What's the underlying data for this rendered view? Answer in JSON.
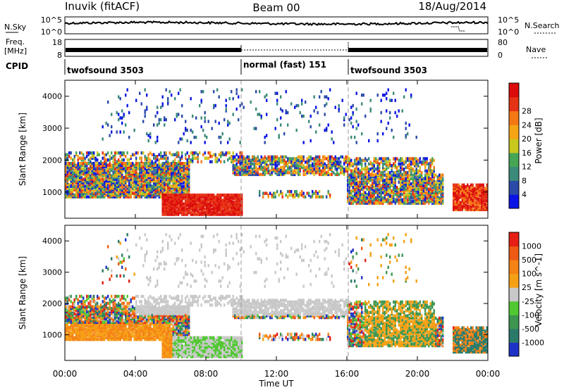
{
  "header": {
    "station": "Inuvik (fitACF)",
    "beam": "Beam 00",
    "date": "18/Aug/2014"
  },
  "noise_panel": {
    "left_label": "N.Sky",
    "right_label": "N.Search",
    "left_ticks": [
      "10^5",
      "10^0"
    ],
    "right_ticks": [
      "10^5",
      "10^0"
    ]
  },
  "freq_panel": {
    "left_label_top": "Freq.",
    "left_label_unit": "[MHz]",
    "right_label": "Nave",
    "left_ticks": [
      "18",
      "8"
    ],
    "right_ticks": [
      "80",
      "0"
    ]
  },
  "cpid": {
    "label": "CPID",
    "segments": [
      {
        "name": "twofsound 3503",
        "start_hour": 0,
        "end_hour": 10
      },
      {
        "name": "normal (fast) 151",
        "start_hour": 10,
        "end_hour": 16
      },
      {
        "name": "twofsound 3503",
        "start_hour": 16,
        "end_hour": 24
      }
    ]
  },
  "chart_data": [
    {
      "type": "heatmap",
      "quantity": "Power",
      "ylabel": "Slant Range [km]",
      "xlabel": "Time UT",
      "xlim_hours": [
        0,
        24
      ],
      "ylim_km": [
        180,
        4500
      ],
      "yticks": [
        1000,
        2000,
        3000,
        4000
      ],
      "colorbar": {
        "label": "Power [dB]",
        "ticks": [
          "4",
          "8",
          "12",
          "16",
          "20",
          "24",
          "28"
        ],
        "colors": [
          "#0a14e6",
          "#2a4aa8",
          "#3b8a7a",
          "#46a656",
          "#c8c81e",
          "#f5a514",
          "#f57814",
          "#e63214",
          "#dc0a0a"
        ]
      }
    },
    {
      "type": "heatmap",
      "quantity": "Velocity",
      "ylabel": "Slant Range [km]",
      "xlabel": "Time UT",
      "xlim_hours": [
        0,
        24
      ],
      "ylim_km": [
        180,
        4500
      ],
      "yticks": [
        1000,
        2000,
        3000,
        4000
      ],
      "colorbar": {
        "label": "Velocity [m s^-1]",
        "ticks": [
          "1000",
          "500",
          "100",
          "25",
          "-25",
          "-100",
          "-500",
          "-1000"
        ],
        "colors": [
          "#1e32c8",
          "#2a7a6a",
          "#3c9650",
          "#50c832",
          "#c8c8c8",
          "#f5a014",
          "#f58214",
          "#ee5a14",
          "#e61e14"
        ]
      }
    }
  ],
  "xaxis": {
    "ticks": [
      "00:00",
      "04:00",
      "08:00",
      "12:00",
      "16:00",
      "20:00",
      "00:00"
    ],
    "label": "Time UT"
  }
}
